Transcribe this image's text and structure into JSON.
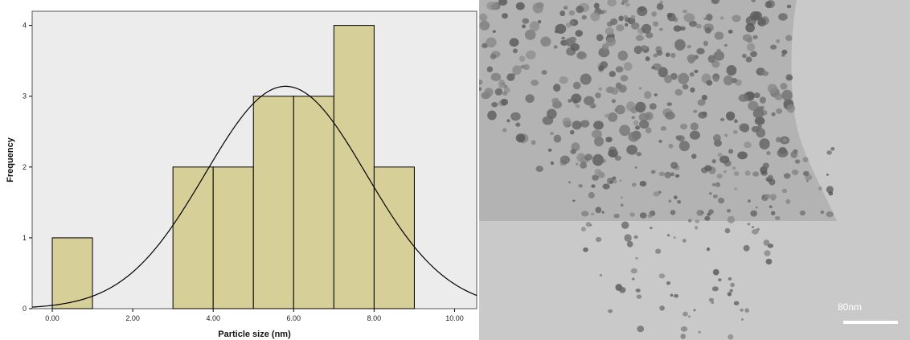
{
  "chart_data": {
    "type": "bar",
    "subtype": "histogram",
    "bins": [
      {
        "x0": 0,
        "x1": 1,
        "count": 1
      },
      {
        "x0": 1,
        "x1": 2,
        "count": 0
      },
      {
        "x0": 2,
        "x1": 3,
        "count": 0
      },
      {
        "x0": 3,
        "x1": 4,
        "count": 2
      },
      {
        "x0": 4,
        "x1": 5,
        "count": 2
      },
      {
        "x0": 5,
        "x1": 6,
        "count": 3
      },
      {
        "x0": 6,
        "x1": 7,
        "count": 3
      },
      {
        "x0": 7,
        "x1": 8,
        "count": 4
      },
      {
        "x0": 8,
        "x1": 9,
        "count": 2
      }
    ],
    "normal_curve": {
      "mean": 5.8,
      "std_dev": 2.0,
      "peak": 3.14
    },
    "xlabel": "Particle size (nm)",
    "ylabel": "Frequency",
    "xlim": [
      -0.5,
      10.55
    ],
    "ylim": [
      0,
      4.2
    ],
    "xticks": [
      "0.00",
      "2.00",
      "4.00",
      "6.00",
      "8.00",
      "10.00"
    ],
    "yticks": [
      "0",
      "1",
      "2",
      "3",
      "4"
    ],
    "bar_color": "#d6cf97",
    "plot_background": "#ececec",
    "grid": false
  },
  "micrograph": {
    "scale_label": "80nm",
    "background_color": "#c9c9c9",
    "particle_color": "#6c6c6c"
  }
}
